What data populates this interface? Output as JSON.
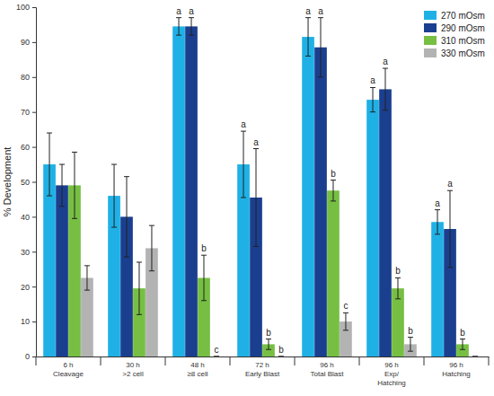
{
  "chart_data": {
    "type": "bar",
    "y_label": "% Development",
    "categories": [
      "6 h\nCleavage",
      "30 h\n>2 cell",
      "48 h\n≥8 cell",
      "72 h\nEarly Blast",
      "96 h\nTotal Blast",
      "96 h\nExp/\nHatching",
      "96 h\nHatching"
    ],
    "series": [
      {
        "name": "270 mOsm",
        "color": "#1fb1e6",
        "values": [
          55,
          46,
          94.5,
          55,
          91.5,
          73.5,
          38.5
        ],
        "errors": [
          9,
          9,
          2.5,
          9.5,
          5.5,
          3.5,
          3.5
        ],
        "letters": [
          null,
          null,
          "a",
          "a",
          "a",
          "a",
          "a"
        ]
      },
      {
        "name": "290 mOsm",
        "color": "#1b3f8f",
        "values": [
          49,
          40,
          94.5,
          45.5,
          88.5,
          76.5,
          36.5
        ],
        "errors": [
          6,
          11.5,
          2.5,
          14,
          8.5,
          6,
          11
        ],
        "letters": [
          null,
          null,
          "a",
          "a",
          "a",
          "a",
          "a"
        ]
      },
      {
        "name": "310 mOsm",
        "color": "#76bf43",
        "values": [
          49,
          19.5,
          22.5,
          3.5,
          47.5,
          19.5,
          3.5
        ],
        "errors": [
          9.5,
          7.5,
          6.5,
          1.5,
          3,
          3,
          1.5
        ],
        "letters": [
          null,
          null,
          "b",
          "b",
          "b",
          "b",
          "b"
        ]
      },
      {
        "name": "330 mOsm",
        "color": "#b3b3b3",
        "values": [
          22.5,
          31,
          0,
          0,
          10,
          3.5,
          0
        ],
        "errors": [
          3.5,
          6.5,
          0,
          0,
          2.5,
          2,
          0
        ],
        "letters": [
          null,
          null,
          "c",
          "b",
          "c",
          "b",
          null
        ]
      }
    ],
    "ylim": [
      0,
      100
    ],
    "yticks": [
      0,
      10,
      20,
      30,
      40,
      50,
      60,
      70,
      80,
      90,
      100
    ],
    "grid": false,
    "legend": "top-right"
  }
}
